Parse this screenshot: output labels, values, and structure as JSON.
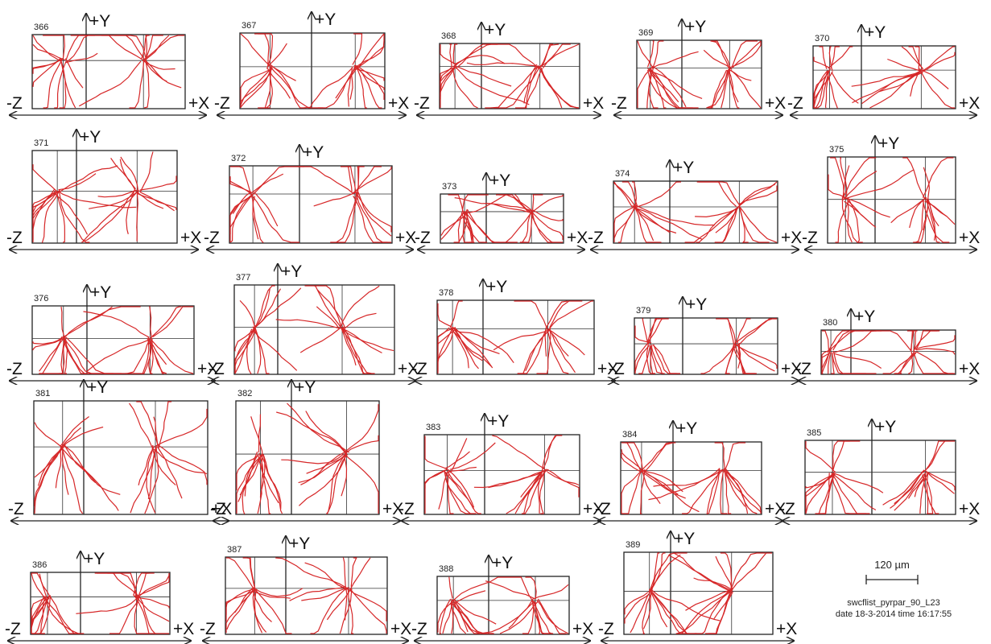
{
  "panels": [
    "366",
    "367",
    "368",
    "369",
    "370",
    "371",
    "372",
    "373",
    "374",
    "375",
    "376",
    "377",
    "378",
    "379",
    "380",
    "381",
    "382",
    "383",
    "384",
    "385",
    "386",
    "387",
    "388",
    "389"
  ],
  "axes": {
    "y": "+Y",
    "neg_z": "-Z",
    "x": "+X"
  },
  "scale_bar": "120 µm",
  "footer": [
    "swcflist_pyrpar_90_L23",
    "date 18-3-2014  time 16:17:55"
  ]
}
